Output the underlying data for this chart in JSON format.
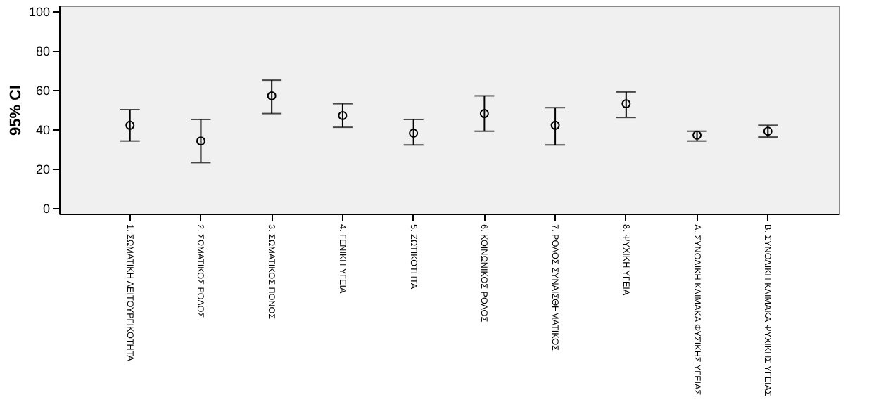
{
  "chart_data": {
    "type": "scatter",
    "ylabel": "95% CI",
    "categories": [
      "1. ΣΩΜΑΤΙΚΗ ΛΕΙΤΟΥΡΓΙΚΟΤΗΤΑ",
      "2. ΣΩΜΑΤΙΚΟΣ ΡΟΛΟΣ",
      "3. ΣΩΜΑΤΙΚΟΣ ΠΟΝΟΣ",
      "4. ΓΕΝΙΚΗ ΥΓΕΙΑ",
      "5. ΖΩΤΙΚΟΤΗΤΑ",
      "6. ΚΟΙΝΩΝΙΚΟΣ ΡΟΛΟΣ",
      "7. ΡΟΛΟΣ ΣΥΝΑΙΣΘΗΜΑΤΙΚΟΣ",
      "8. ΨΥΧΙΚΗ ΥΓΕΙΑ",
      "Α. ΣΥΝΟΛΙΚΗ ΚΛΙΜΑΚΑ ΦΥΣΙΚΗΣ ΥΓΕΙΑΣ",
      "Β. ΣΥΝΟΛΙΚΗ ΚΛΙΜΑΚΑ ΨΥΧΙΚΗΣ ΥΓΕΙΑΣ"
    ],
    "series": [
      {
        "color": "#000000",
        "values": [
          42,
          34,
          57,
          47,
          38,
          48,
          42,
          53,
          37,
          39
        ],
        "errors": [
          [
            34,
            50
          ],
          [
            23,
            45
          ],
          [
            48,
            65
          ],
          [
            41,
            53
          ],
          [
            32,
            45
          ],
          [
            39,
            57
          ],
          [
            32,
            51
          ],
          [
            46,
            59
          ],
          [
            34,
            39
          ],
          [
            36,
            42
          ]
        ]
      }
    ],
    "ylim": [
      -3,
      103
    ],
    "yticks": [
      0,
      20,
      40,
      60,
      80,
      100
    ],
    "grid": false,
    "legend": false,
    "marker": "circle"
  }
}
